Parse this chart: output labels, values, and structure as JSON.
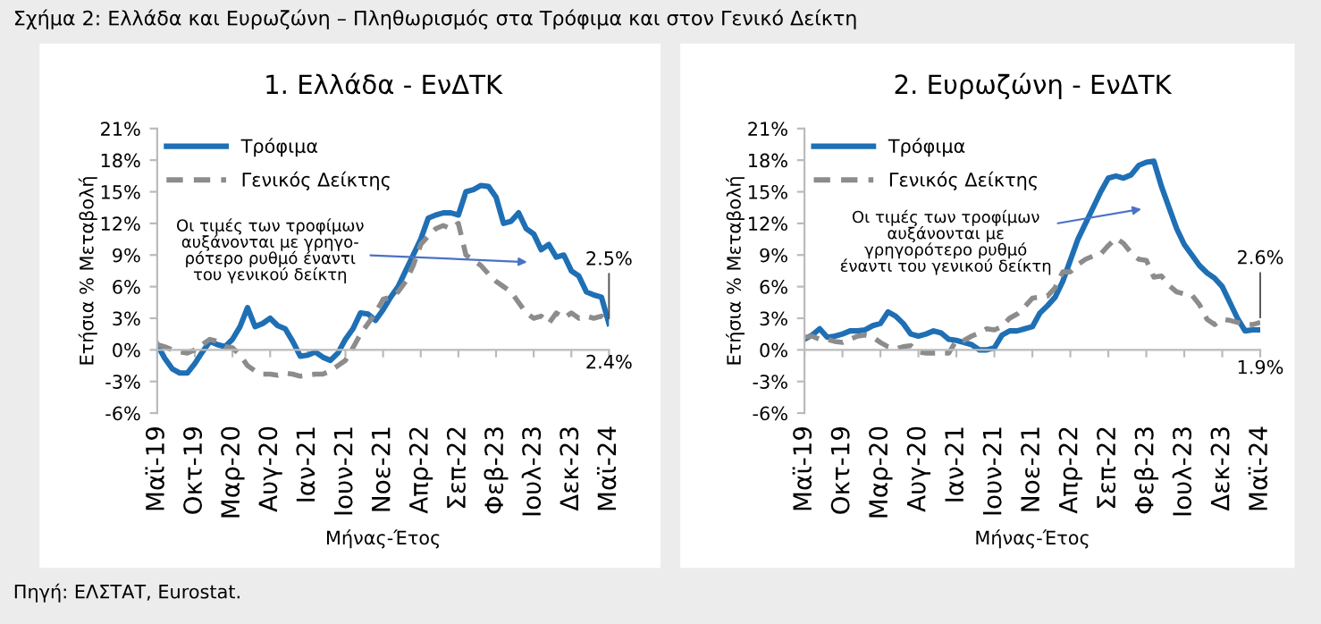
{
  "chart_data": [
    {
      "type": "line",
      "title": "1. Ελλάδα - ΕνΔΤΚ",
      "xlabel": "Μήνας-Έτος",
      "ylabel": "Ετήσια % Μεταβολή",
      "annotations": [
        "Σχήμα 2: Ελλάδα και Ευρωζώνη – Πληθωρισμός στα Τρόφιμα και στον Γενικό Δείκτη",
        "Πηγή: ΕΛΣΤΑΤ, Eurostat.",
        "Οι τιμές των τροφίμων\nαυξάνονται με γρηγο-\nρότερο ρυθμό έναντι\nτου γενικού δείκτη"
      ],
      "categories": [
        "Μαϊ-19",
        null,
        null,
        null,
        null,
        "Οκτ-19",
        null,
        null,
        null,
        null,
        "Μαρ-20",
        null,
        null,
        null,
        null,
        "Αυγ-20",
        null,
        null,
        null,
        null,
        "Ιαν-21",
        null,
        null,
        null,
        null,
        "Ιουν-21",
        null,
        null,
        null,
        null,
        "Νοε-21",
        null,
        null,
        null,
        null,
        "Απρ-22",
        null,
        null,
        null,
        null,
        "Σεπ-22",
        null,
        null,
        null,
        null,
        "Φεβ-23",
        null,
        null,
        null,
        null,
        "Ιουλ-23",
        null,
        null,
        null,
        null,
        "Δεκ-23",
        null,
        null,
        null,
        null,
        "Μαϊ-24"
      ],
      "series": [
        {
          "name": "Τρόφιμα",
          "color": "#1f6fb5",
          "line_style": "solid",
          "values": [
            0.5,
            -0.8,
            -1.8,
            -2.2,
            -2.2,
            -1.3,
            -0.2,
            0.8,
            0.5,
            0.3,
            1.0,
            2.2,
            4.0,
            2.2,
            2.5,
            3.0,
            2.3,
            2.0,
            0.8,
            -0.6,
            -0.5,
            -0.2,
            -0.7,
            -1.0,
            -0.3,
            1.0,
            2.0,
            3.5,
            3.4,
            2.8,
            3.8,
            5.0,
            6.0,
            7.5,
            9.0,
            10.5,
            12.5,
            12.8,
            13.0,
            13.0,
            12.8,
            15.0,
            15.2,
            15.6,
            15.5,
            14.5,
            12.0,
            12.2,
            13.0,
            11.5,
            11.0,
            9.5,
            10.0,
            8.8,
            9.0,
            7.5,
            7.0,
            5.5,
            5.2,
            5.0,
            2.5
          ],
          "value_labels": [
            null,
            null,
            null,
            null,
            null,
            null,
            null,
            null,
            null,
            null,
            null,
            null,
            null,
            null,
            null,
            null,
            null,
            null,
            null,
            null,
            null,
            null,
            null,
            null,
            null,
            null,
            null,
            null,
            null,
            null,
            null,
            null,
            null,
            null,
            null,
            null,
            null,
            null,
            null,
            null,
            null,
            null,
            null,
            null,
            null,
            null,
            null,
            null,
            null,
            null,
            null,
            null,
            null,
            null,
            null,
            null,
            null,
            null,
            null,
            null,
            "2.5%"
          ]
        },
        {
          "name": "Γενικός Δείκτης",
          "color": "#8c8c8c",
          "line_style": "dashed",
          "values": [
            0.5,
            0.3,
            0.0,
            -0.2,
            -0.3,
            0.0,
            0.5,
            1.0,
            0.8,
            0.3,
            0.2,
            -0.5,
            -1.5,
            -2.0,
            -2.3,
            -2.3,
            -2.4,
            -2.2,
            -2.3,
            -2.5,
            -2.4,
            -2.3,
            -2.3,
            -2.0,
            -1.5,
            -1.0,
            0.2,
            1.5,
            2.5,
            3.5,
            4.8,
            5.0,
            5.5,
            6.5,
            8.0,
            10.0,
            10.8,
            11.5,
            11.8,
            11.5,
            12.0,
            9.0,
            8.5,
            8.0,
            7.2,
            6.5,
            6.0,
            5.5,
            4.5,
            3.5,
            3.0,
            3.2,
            2.5,
            3.5,
            3.0,
            3.5,
            3.0,
            3.2,
            3.0,
            3.2,
            2.4
          ],
          "value_labels": [
            null,
            null,
            null,
            null,
            null,
            null,
            null,
            null,
            null,
            null,
            null,
            null,
            null,
            null,
            null,
            null,
            null,
            null,
            null,
            null,
            null,
            null,
            null,
            null,
            null,
            null,
            null,
            null,
            null,
            null,
            null,
            null,
            null,
            null,
            null,
            null,
            null,
            null,
            null,
            null,
            null,
            null,
            null,
            null,
            null,
            null,
            null,
            null,
            null,
            null,
            null,
            null,
            null,
            null,
            null,
            null,
            null,
            null,
            null,
            null,
            "2.4%"
          ]
        }
      ],
      "ylim": [
        -6,
        21
      ],
      "yticks": [
        {
          "value": -6,
          "label": "-6%"
        },
        {
          "value": -3,
          "label": "-3%"
        },
        {
          "value": 0,
          "label": "0%"
        },
        {
          "value": 3,
          "label": "3%"
        },
        {
          "value": 6,
          "label": "6%"
        },
        {
          "value": 9,
          "label": "9%"
        },
        {
          "value": 12,
          "label": "12%"
        },
        {
          "value": 15,
          "label": "15%"
        },
        {
          "value": 18,
          "label": "18%"
        },
        {
          "value": 21,
          "label": "21%"
        }
      ],
      "legend": "top left"
    },
    {
      "type": "line",
      "title": "2. Ευρωζώνη - ΕνΔΤΚ",
      "xlabel": "Μήνας-Έτος",
      "ylabel": "Ετήσια % Μεταβολή",
      "annotations": [
        "Οι τιμές των τροφίμων\nαυξάνονται με\nγρηγορότερο ρυθμό\nέναντι του γενικού δείκτη"
      ],
      "categories": [
        "Μαϊ-19",
        null,
        null,
        null,
        null,
        "Οκτ-19",
        null,
        null,
        null,
        null,
        "Μαρ-20",
        null,
        null,
        null,
        null,
        "Αυγ-20",
        null,
        null,
        null,
        null,
        "Ιαν-21",
        null,
        null,
        null,
        null,
        "Ιουν-21",
        null,
        null,
        null,
        null,
        "Νοε-21",
        null,
        null,
        null,
        null,
        "Απρ-22",
        null,
        null,
        null,
        null,
        "Σεπ-22",
        null,
        null,
        null,
        null,
        "Φεβ-23",
        null,
        null,
        null,
        null,
        "Ιουλ-23",
        null,
        null,
        null,
        null,
        "Δεκ-23",
        null,
        null,
        null,
        null,
        "Μαϊ-24"
      ],
      "series": [
        {
          "name": "Τρόφιμα",
          "color": "#1f6fb5",
          "line_style": "solid",
          "values": [
            1.0,
            1.4,
            2.0,
            1.2,
            1.3,
            1.5,
            1.8,
            1.8,
            1.9,
            2.3,
            2.5,
            3.6,
            3.2,
            2.5,
            1.5,
            1.3,
            1.5,
            1.8,
            1.6,
            1.0,
            0.9,
            0.7,
            0.5,
            0.0,
            0.0,
            0.2,
            1.4,
            1.8,
            1.8,
            2.0,
            2.2,
            3.5,
            4.2,
            5.0,
            6.5,
            8.5,
            10.5,
            12.0,
            13.5,
            15.0,
            16.3,
            16.5,
            16.3,
            16.6,
            17.5,
            17.8,
            17.9,
            15.5,
            13.5,
            11.5,
            10.0,
            9.0,
            8.0,
            7.3,
            6.8,
            6.0,
            4.5,
            3.0,
            1.8,
            1.9,
            1.9
          ],
          "value_labels": [
            null,
            null,
            null,
            null,
            null,
            null,
            null,
            null,
            null,
            null,
            null,
            null,
            null,
            null,
            null,
            null,
            null,
            null,
            null,
            null,
            null,
            null,
            null,
            null,
            null,
            null,
            null,
            null,
            null,
            null,
            null,
            null,
            null,
            null,
            null,
            null,
            null,
            null,
            null,
            null,
            null,
            null,
            null,
            null,
            null,
            null,
            null,
            null,
            null,
            null,
            null,
            null,
            null,
            null,
            null,
            null,
            null,
            null,
            null,
            null,
            "1.9%"
          ]
        },
        {
          "name": "Γενικός Δείκτης",
          "color": "#8c8c8c",
          "line_style": "dashed",
          "values": [
            1.2,
            1.3,
            1.0,
            1.0,
            0.8,
            0.7,
            1.0,
            1.3,
            1.4,
            1.2,
            0.7,
            0.3,
            0.1,
            0.3,
            0.4,
            -0.2,
            -0.3,
            -0.3,
            -0.3,
            -0.3,
            0.9,
            0.9,
            1.3,
            1.6,
            2.0,
            1.9,
            2.2,
            3.0,
            3.4,
            4.1,
            4.9,
            5.0,
            5.1,
            5.9,
            7.4,
            7.4,
            8.1,
            8.6,
            8.9,
            9.1,
            9.9,
            10.6,
            10.1,
            9.2,
            8.6,
            8.5,
            6.9,
            7.0,
            6.1,
            5.5,
            5.3,
            5.2,
            4.3,
            2.9,
            2.4,
            2.9,
            2.8,
            2.6,
            2.4,
            2.4,
            2.6
          ],
          "value_labels": [
            null,
            null,
            null,
            null,
            null,
            null,
            null,
            null,
            null,
            null,
            null,
            null,
            null,
            null,
            null,
            null,
            null,
            null,
            null,
            null,
            null,
            null,
            null,
            null,
            null,
            null,
            null,
            null,
            null,
            null,
            null,
            null,
            null,
            null,
            null,
            null,
            null,
            null,
            null,
            null,
            null,
            null,
            null,
            null,
            null,
            null,
            null,
            null,
            null,
            null,
            null,
            null,
            null,
            null,
            null,
            null,
            null,
            null,
            null,
            null,
            "2.6%"
          ]
        }
      ],
      "ylim": [
        -6,
        21
      ],
      "yticks": [
        {
          "value": -6,
          "label": "-6%"
        },
        {
          "value": -3,
          "label": "-3%"
        },
        {
          "value": 0,
          "label": "0%"
        },
        {
          "value": 3,
          "label": "3%"
        },
        {
          "value": 6,
          "label": "6%"
        },
        {
          "value": 9,
          "label": "9%"
        },
        {
          "value": 12,
          "label": "12%"
        },
        {
          "value": 15,
          "label": "15%"
        },
        {
          "value": 18,
          "label": "18%"
        },
        {
          "value": 21,
          "label": "21%"
        }
      ],
      "legend": "top left"
    }
  ]
}
